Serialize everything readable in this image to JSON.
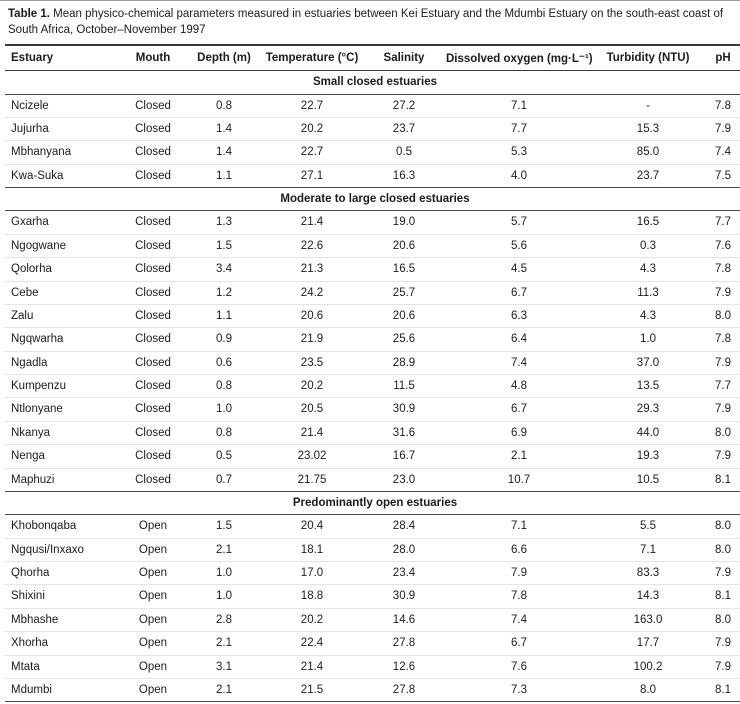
{
  "caption": {
    "label": "Table 1.",
    "text": " Mean physico-chemical parameters measured in estuaries between Kei Estuary and the Mdumbi Estuary on the south-east coast of South Africa, October–November 1997"
  },
  "table": {
    "columns": [
      "Estuary",
      "Mouth",
      "Depth (m)",
      "Temperature (°C)",
      "Salinity",
      "Dissolved oxygen (mg·L⁻¹)",
      "Turbidity (NTU)",
      "pH"
    ],
    "sections": [
      {
        "title": "Small closed estuaries",
        "rows": [
          [
            "Ncizele",
            "Closed",
            "0.8",
            "22.7",
            "27.2",
            "7.1",
            "-",
            "7.8"
          ],
          [
            "Jujurha",
            "Closed",
            "1.4",
            "20.2",
            "23.7",
            "7.7",
            "15.3",
            "7.9"
          ],
          [
            "Mbhanyana",
            "Closed",
            "1.4",
            "22.7",
            "0.5",
            "5.3",
            "85.0",
            "7.4"
          ],
          [
            "Kwa-Suka",
            "Closed",
            "1.1",
            "27.1",
            "16.3",
            "4.0",
            "23.7",
            "7.5"
          ]
        ]
      },
      {
        "title": "Moderate to large closed estuaries",
        "rows": [
          [
            "Gxarha",
            "Closed",
            "1.3",
            "21.4",
            "19.0",
            "5.7",
            "16.5",
            "7.7"
          ],
          [
            "Ngogwane",
            "Closed",
            "1.5",
            "22.6",
            "20.6",
            "5.6",
            "0.3",
            "7.6"
          ],
          [
            "Qolorha",
            "Closed",
            "3.4",
            "21.3",
            "16.5",
            "4.5",
            "4.3",
            "7.8"
          ],
          [
            "Cebe",
            "Closed",
            "1.2",
            "24.2",
            "25.7",
            "6.7",
            "11.3",
            "7.9"
          ],
          [
            "Zalu",
            "Closed",
            "1.1",
            "20.6",
            "20.6",
            "6.3",
            "4.3",
            "8.0"
          ],
          [
            "Ngqwarha",
            "Closed",
            "0.9",
            "21.9",
            "25.6",
            "6.4",
            "1.0",
            "7.8"
          ],
          [
            "Ngadla",
            "Closed",
            "0.6",
            "23.5",
            "28.9",
            "7.4",
            "37.0",
            "7.9"
          ],
          [
            "Kumpenzu",
            "Closed",
            "0.8",
            "20.2",
            "11.5",
            "4.8",
            "13.5",
            "7.7"
          ],
          [
            "Ntlonyane",
            "Closed",
            "1.0",
            "20.5",
            "30.9",
            "6.7",
            "29.3",
            "7.9"
          ],
          [
            "Nkanya",
            "Closed",
            "0.8",
            "21.4",
            "31.6",
            "6.9",
            "44.0",
            "8.0"
          ],
          [
            "Nenga",
            "Closed",
            "0.5",
            "23.02",
            "16.7",
            "2.1",
            "19.3",
            "7.9"
          ],
          [
            "Maphuzi",
            "Closed",
            "0.7",
            "21.75",
            "23.0",
            "10.7",
            "10.5",
            "8.1"
          ]
        ]
      },
      {
        "title": "Predominantly open estuaries",
        "rows": [
          [
            "Khobonqaba",
            "Open",
            "1.5",
            "20.4",
            "28.4",
            "7.1",
            "5.5",
            "8.0"
          ],
          [
            "Ngqusi/Inxaxo",
            "Open",
            "2.1",
            "18.1",
            "28.0",
            "6.6",
            "7.1",
            "8.0"
          ],
          [
            "Qhorha",
            "Open",
            "1.0",
            "17.0",
            "23.4",
            "7.9",
            "83.3",
            "7.9"
          ],
          [
            "Shixini",
            "Open",
            "1.0",
            "18.8",
            "30.9",
            "7.8",
            "14.3",
            "8.1"
          ],
          [
            "Mbhashe",
            "Open",
            "2.8",
            "20.2",
            "14.6",
            "7.4",
            "163.0",
            "8.0"
          ],
          [
            "Xhorha",
            "Open",
            "2.1",
            "22.4",
            "27.8",
            "6.7",
            "17.7",
            "7.9"
          ],
          [
            "Mtata",
            "Open",
            "3.1",
            "21.4",
            "12.6",
            "7.6",
            "100.2",
            "7.9"
          ],
          [
            "Mdumbi",
            "Open",
            "2.1",
            "21.5",
            "27.8",
            "7.3",
            "8.0",
            "8.1"
          ]
        ]
      }
    ]
  }
}
